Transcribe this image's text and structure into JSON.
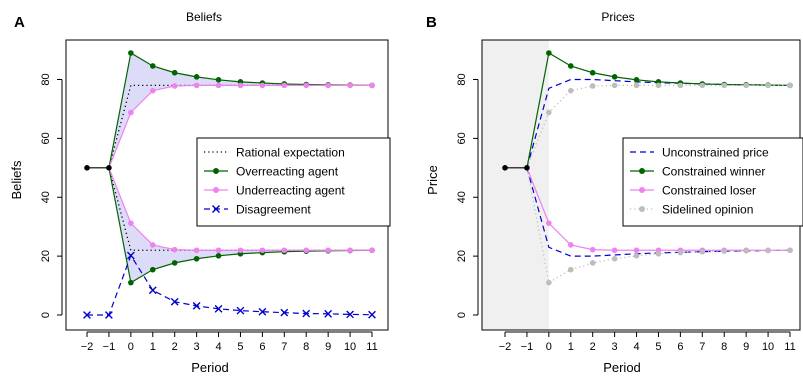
{
  "chart_data": [
    {
      "type": "line",
      "panel_label": "A",
      "title": "Beliefs",
      "xlabel": "Period",
      "ylabel": "Beliefs",
      "xlim": [
        -2,
        11
      ],
      "ylim": [
        0,
        90
      ],
      "xticks": [
        -2,
        -1,
        0,
        1,
        2,
        3,
        4,
        5,
        6,
        7,
        8,
        9,
        10,
        11
      ],
      "yticks": [
        0,
        20,
        40,
        60,
        80
      ],
      "legend_position": "right",
      "shaded_band_color": "#dcdcf8",
      "pre_period": {
        "x": [
          -2,
          -1
        ],
        "y": [
          50,
          50
        ],
        "color": "#000000"
      },
      "series": [
        {
          "name": "Rational expectation",
          "style": "dotted",
          "color": "#000000",
          "group": "high",
          "x": [
            -1,
            0,
            11
          ],
          "y": [
            50,
            78,
            78
          ]
        },
        {
          "name": "Rational expectation",
          "style": "dotted",
          "color": "#000000",
          "group": "low",
          "legend": false,
          "x": [
            -1,
            0,
            11
          ],
          "y": [
            50,
            22,
            22
          ]
        },
        {
          "name": "Overreacting agent",
          "style": "solid",
          "marker": "dot",
          "color": "#006400",
          "group": "high",
          "x": [
            -1,
            0,
            1,
            2,
            3,
            4,
            5,
            6,
            7,
            8,
            9,
            10,
            11
          ],
          "y": [
            50,
            89,
            84.6,
            82.3,
            80.9,
            79.9,
            79.2,
            78.8,
            78.5,
            78.3,
            78.2,
            78.1,
            78
          ]
        },
        {
          "name": "Overreacting agent",
          "style": "solid",
          "marker": "dot",
          "color": "#006400",
          "group": "low",
          "legend": false,
          "x": [
            -1,
            0,
            1,
            2,
            3,
            4,
            5,
            6,
            7,
            8,
            9,
            10,
            11
          ],
          "y": [
            50,
            11,
            15.4,
            17.7,
            19.1,
            20.1,
            20.8,
            21.2,
            21.5,
            21.7,
            21.8,
            21.9,
            22
          ]
        },
        {
          "name": "Underreacting agent",
          "style": "solid",
          "marker": "dot",
          "color": "#ee82ee",
          "group": "high",
          "x": [
            -1,
            0,
            1,
            2,
            3,
            4,
            5,
            6,
            7,
            8,
            9,
            10,
            11
          ],
          "y": [
            50,
            68.8,
            76.2,
            77.8,
            78,
            78,
            78,
            78,
            78,
            78,
            78,
            78,
            78
          ]
        },
        {
          "name": "Underreacting agent",
          "style": "solid",
          "marker": "dot",
          "color": "#ee82ee",
          "group": "low",
          "legend": false,
          "x": [
            -1,
            0,
            1,
            2,
            3,
            4,
            5,
            6,
            7,
            8,
            9,
            10,
            11
          ],
          "y": [
            50,
            31.2,
            23.8,
            22.2,
            22,
            22,
            22,
            22,
            22,
            22,
            22,
            22,
            22
          ]
        },
        {
          "name": "Disagreement",
          "style": "dashed",
          "marker": "x",
          "color": "#0000cd",
          "x": [
            -2,
            -1,
            0,
            1,
            2,
            3,
            4,
            5,
            6,
            7,
            8,
            9,
            10,
            11
          ],
          "y": [
            0,
            0,
            20.2,
            8.4,
            4.5,
            3.1,
            2.1,
            1.5,
            1.1,
            0.8,
            0.5,
            0.4,
            0.2,
            0.1
          ]
        }
      ],
      "legend": [
        {
          "label": "Rational expectation",
          "style": "dotted",
          "color": "#000000"
        },
        {
          "label": "Overreacting agent",
          "style": "solid",
          "marker": "dot",
          "color": "#006400"
        },
        {
          "label": "Underreacting agent",
          "style": "solid",
          "marker": "dot",
          "color": "#ee82ee"
        },
        {
          "label": "Disagreement",
          "style": "dashed",
          "marker": "x",
          "color": "#0000cd"
        }
      ]
    },
    {
      "type": "line",
      "panel_label": "B",
      "title": "Prices",
      "xlabel": "Period",
      "ylabel": "Price",
      "xlim": [
        -2,
        11
      ],
      "ylim": [
        0,
        90
      ],
      "xticks": [
        -2,
        -1,
        0,
        1,
        2,
        3,
        4,
        5,
        6,
        7,
        8,
        9,
        10,
        11
      ],
      "yticks": [
        0,
        20,
        40,
        60,
        80
      ],
      "legend_position": "right",
      "shaded_region": {
        "x": [
          -2.4,
          0
        ],
        "color": "#f0f0f0"
      },
      "pre_period": {
        "x": [
          -2,
          -1
        ],
        "y": [
          50,
          50
        ],
        "color": "#000000"
      },
      "series": [
        {
          "name": "Unconstrained price",
          "style": "dashed",
          "color": "#0000cd",
          "group": "high",
          "x": [
            -1,
            0,
            1,
            2,
            3,
            4,
            5,
            6,
            7,
            8,
            9,
            10,
            11
          ],
          "y": [
            50,
            77,
            80,
            80,
            79.6,
            79.2,
            78.9,
            78.7,
            78.5,
            78.3,
            78.2,
            78.1,
            78
          ]
        },
        {
          "name": "Unconstrained price",
          "style": "dashed",
          "color": "#0000cd",
          "group": "low",
          "legend": false,
          "x": [
            -1,
            0,
            1,
            2,
            3,
            4,
            5,
            6,
            7,
            8,
            9,
            10,
            11
          ],
          "y": [
            50,
            23,
            20,
            20,
            20.4,
            20.8,
            21.1,
            21.3,
            21.5,
            21.7,
            21.8,
            21.9,
            22
          ]
        },
        {
          "name": "Constrained winner",
          "style": "solid",
          "marker": "dot",
          "color": "#006400",
          "x": [
            -1,
            0,
            1,
            2,
            3,
            4,
            5,
            6,
            7,
            8,
            9,
            10,
            11
          ],
          "y": [
            50,
            89,
            84.6,
            82.3,
            80.9,
            79.9,
            79.2,
            78.8,
            78.5,
            78.3,
            78.2,
            78.1,
            78
          ]
        },
        {
          "name": "Constrained loser",
          "style": "solid",
          "marker": "dot",
          "color": "#ee82ee",
          "x": [
            -1,
            0,
            1,
            2,
            3,
            4,
            5,
            6,
            7,
            8,
            9,
            10,
            11
          ],
          "y": [
            50,
            31.2,
            23.8,
            22.2,
            22,
            22,
            22,
            22,
            22,
            22,
            22,
            22,
            22
          ]
        },
        {
          "name": "Sidelined opinion",
          "style": "dotted",
          "marker": "dot",
          "color": "#bdbdbd",
          "group": "high",
          "x": [
            -1,
            0,
            1,
            2,
            3,
            4,
            5,
            6,
            7,
            8,
            9,
            10,
            11
          ],
          "y": [
            50,
            68.8,
            76.2,
            77.8,
            78,
            78,
            78,
            78,
            78,
            78,
            78,
            78,
            78
          ]
        },
        {
          "name": "Sidelined opinion",
          "style": "dotted",
          "marker": "dot",
          "color": "#bdbdbd",
          "group": "low",
          "legend": false,
          "x": [
            -1,
            0,
            1,
            2,
            3,
            4,
            5,
            6,
            7,
            8,
            9,
            10,
            11
          ],
          "y": [
            50,
            11,
            15.4,
            17.7,
            19.1,
            20.1,
            20.8,
            21.2,
            21.5,
            21.7,
            21.8,
            21.9,
            22
          ]
        }
      ],
      "legend": [
        {
          "label": "Unconstrained price",
          "style": "dashed",
          "color": "#0000cd"
        },
        {
          "label": "Constrained winner",
          "style": "solid",
          "marker": "dot",
          "color": "#006400"
        },
        {
          "label": "Constrained loser",
          "style": "solid",
          "marker": "dot",
          "color": "#ee82ee"
        },
        {
          "label": "Sidelined opinion",
          "style": "dotted",
          "marker": "dot",
          "color": "#bdbdbd"
        }
      ]
    }
  ]
}
